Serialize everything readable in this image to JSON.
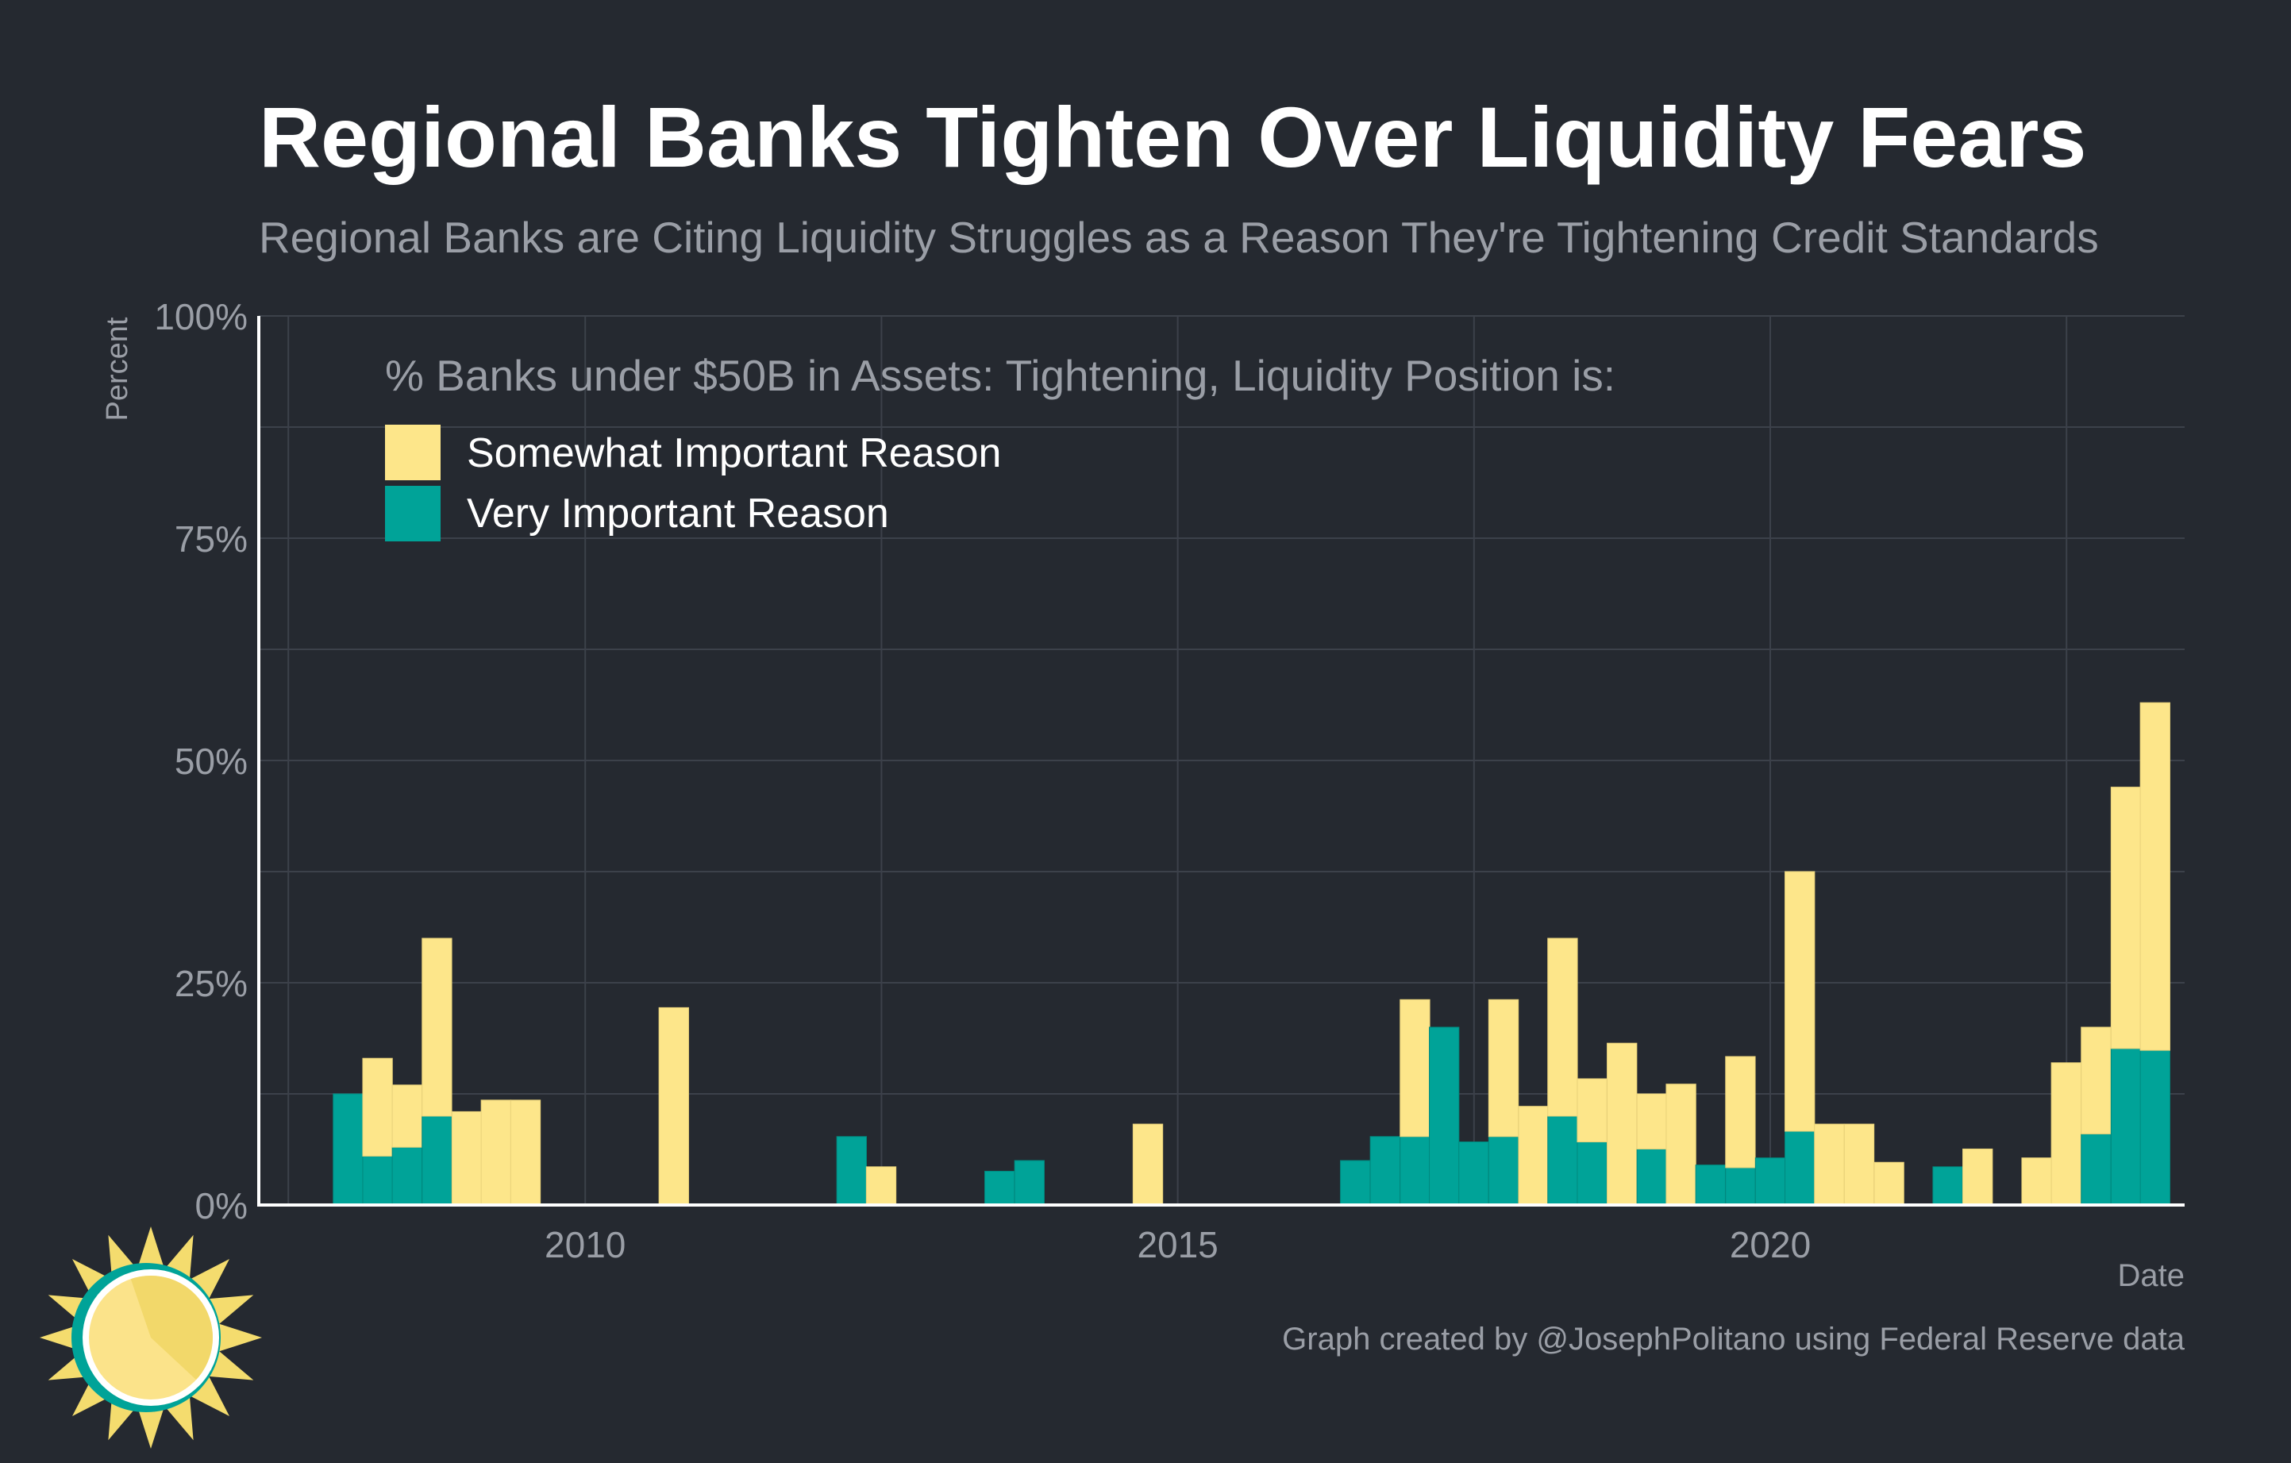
{
  "title": "Regional Banks Tighten Over Liquidity Fears",
  "subtitle": "Regional Banks are Citing Liquidity Struggles as a Reason They're Tightening Credit Standards",
  "caption": "Graph created by @JosephPolitano using Federal Reserve data",
  "colors": {
    "background": "#252930",
    "somewhat": "#fde68a",
    "very": "#00a398",
    "grid": "#3c414a",
    "axis": "#ffffff",
    "muted_text": "#9a9ea6",
    "logo_sun": "#f4dc6e",
    "logo_ring": "#00a398"
  },
  "logo": {
    "icon": "sun-logo-icon"
  },
  "chart_data": {
    "type": "bar",
    "stacked": true,
    "xlabel": "Date",
    "ylabel": "Percent",
    "xlim": [
      "2007-04-01",
      "2023-07-01"
    ],
    "ylim": [
      0,
      100
    ],
    "y_ticks": [
      {
        "value": 0,
        "label": "0%"
      },
      {
        "value": 25,
        "label": "25%"
      },
      {
        "value": 50,
        "label": "50%"
      },
      {
        "value": 75,
        "label": "75%"
      },
      {
        "value": 100,
        "label": "100%"
      }
    ],
    "x_ticks": [
      {
        "date": "2010-01-01",
        "label": "2010"
      },
      {
        "date": "2015-01-01",
        "label": "2015"
      },
      {
        "date": "2020-01-01",
        "label": "2020"
      }
    ],
    "grid": true,
    "legend": {
      "title": "% Banks under $50B in Assets: Tightening, Liquidity Position is:",
      "placement": "top-left",
      "entries": [
        {
          "key": "somewhat",
          "label": "Somewhat Important Reason"
        },
        {
          "key": "very",
          "label": "Very Important Reason"
        }
      ]
    },
    "series": [
      {
        "key": "very",
        "name": "Very Important Reason"
      },
      {
        "key": "somewhat",
        "name": "Somewhat Important Reason"
      }
    ],
    "bars": [
      {
        "date": "2008-01-01",
        "very": 12.5,
        "somewhat": 0
      },
      {
        "date": "2008-04-01",
        "very": 5.5,
        "somewhat": 11
      },
      {
        "date": "2008-07-01",
        "very": 6.5,
        "somewhat": 7
      },
      {
        "date": "2008-10-01",
        "very": 10,
        "somewhat": 20
      },
      {
        "date": "2009-01-01",
        "very": 0,
        "somewhat": 10.5
      },
      {
        "date": "2009-04-01",
        "very": 0,
        "somewhat": 11.8
      },
      {
        "date": "2009-07-01",
        "very": 0,
        "somewhat": 11.8
      },
      {
        "date": "2009-10-01",
        "very": 0,
        "somewhat": 0
      },
      {
        "date": "2010-01-01",
        "very": 0,
        "somewhat": 0
      },
      {
        "date": "2010-04-01",
        "very": 0,
        "somewhat": 0
      },
      {
        "date": "2010-07-01",
        "very": 0,
        "somewhat": 0
      },
      {
        "date": "2010-10-01",
        "very": 0,
        "somewhat": 22.2
      },
      {
        "date": "2011-01-01",
        "very": 0,
        "somewhat": 0
      },
      {
        "date": "2011-04-01",
        "very": 0,
        "somewhat": 0
      },
      {
        "date": "2011-07-01",
        "very": 0,
        "somewhat": 0
      },
      {
        "date": "2011-10-01",
        "very": 0,
        "somewhat": 0
      },
      {
        "date": "2012-01-01",
        "very": 0,
        "somewhat": 0
      },
      {
        "date": "2012-04-01",
        "very": 7.7,
        "somewhat": 0
      },
      {
        "date": "2012-07-01",
        "very": 0,
        "somewhat": 4.3
      },
      {
        "date": "2012-10-01",
        "very": 0,
        "somewhat": 0
      },
      {
        "date": "2013-01-01",
        "very": 0,
        "somewhat": 0
      },
      {
        "date": "2013-04-01",
        "very": 0,
        "somewhat": 0
      },
      {
        "date": "2013-07-01",
        "very": 3.8,
        "somewhat": 0
      },
      {
        "date": "2013-10-01",
        "very": 5,
        "somewhat": 0
      },
      {
        "date": "2014-01-01",
        "very": 0,
        "somewhat": 0
      },
      {
        "date": "2014-04-01",
        "very": 0,
        "somewhat": 0
      },
      {
        "date": "2014-07-01",
        "very": 0,
        "somewhat": 0
      },
      {
        "date": "2014-10-01",
        "very": 0,
        "somewhat": 9.1
      },
      {
        "date": "2015-01-01",
        "very": 0,
        "somewhat": 0
      },
      {
        "date": "2015-04-01",
        "very": 0,
        "somewhat": 0
      },
      {
        "date": "2015-07-01",
        "very": 0,
        "somewhat": 0
      },
      {
        "date": "2015-10-01",
        "very": 0,
        "somewhat": 0
      },
      {
        "date": "2016-01-01",
        "very": 0,
        "somewhat": 0
      },
      {
        "date": "2016-04-01",
        "very": 0,
        "somewhat": 0
      },
      {
        "date": "2016-07-01",
        "very": 5,
        "somewhat": 0
      },
      {
        "date": "2016-10-01",
        "very": 7.7,
        "somewhat": 0
      },
      {
        "date": "2017-01-01",
        "very": 7.7,
        "somewhat": 15.4
      },
      {
        "date": "2017-04-01",
        "very": 20,
        "somewhat": 0
      },
      {
        "date": "2017-07-01",
        "very": 7.1,
        "somewhat": 0
      },
      {
        "date": "2017-10-01",
        "very": 7.7,
        "somewhat": 15.4
      },
      {
        "date": "2018-01-01",
        "very": 0,
        "somewhat": 11.1
      },
      {
        "date": "2018-04-01",
        "very": 10,
        "somewhat": 20
      },
      {
        "date": "2018-07-01",
        "very": 7.1,
        "somewhat": 7.1
      },
      {
        "date": "2018-10-01",
        "very": 0,
        "somewhat": 18.2
      },
      {
        "date": "2019-01-01",
        "very": 6.3,
        "somewhat": 6.2
      },
      {
        "date": "2019-04-01",
        "very": 0,
        "somewhat": 13.6
      },
      {
        "date": "2019-07-01",
        "very": 4.5,
        "somewhat": 0
      },
      {
        "date": "2019-10-01",
        "very": 4.2,
        "somewhat": 12.5
      },
      {
        "date": "2020-01-01",
        "very": 5.3,
        "somewhat": 0
      },
      {
        "date": "2020-04-01",
        "very": 8.3,
        "somewhat": 29.2
      },
      {
        "date": "2020-07-01",
        "very": 0,
        "somewhat": 9.1
      },
      {
        "date": "2020-10-01",
        "very": 0,
        "somewhat": 9.1
      },
      {
        "date": "2021-01-01",
        "very": 0,
        "somewhat": 4.8
      },
      {
        "date": "2021-04-01",
        "very": 0,
        "somewhat": 0
      },
      {
        "date": "2021-07-01",
        "very": 4.3,
        "somewhat": 0
      },
      {
        "date": "2021-10-01",
        "very": 0,
        "somewhat": 6.3
      },
      {
        "date": "2022-01-01",
        "very": 0,
        "somewhat": 0
      },
      {
        "date": "2022-04-01",
        "very": 0,
        "somewhat": 5.3
      },
      {
        "date": "2022-07-01",
        "very": 0,
        "somewhat": 16
      },
      {
        "date": "2022-10-01",
        "very": 8,
        "somewhat": 12
      },
      {
        "date": "2023-01-01",
        "very": 17.6,
        "somewhat": 29.4
      },
      {
        "date": "2023-04-01",
        "very": 17.4,
        "somewhat": 39.1
      }
    ]
  }
}
